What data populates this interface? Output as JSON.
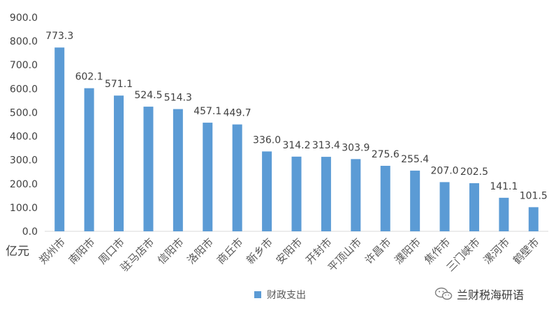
{
  "chart_data": {
    "type": "bar",
    "title": "",
    "xlabel": "",
    "ylabel": "亿元",
    "ylim": [
      0,
      900
    ],
    "yticks": [
      "0.0",
      "100.0",
      "200.0",
      "300.0",
      "400.0",
      "500.0",
      "600.0",
      "700.0",
      "800.0",
      "900.0"
    ],
    "grid": false,
    "legend_position": "bottom",
    "bar_color": "#5b9bd5",
    "categories": [
      "郑州市",
      "南阳市",
      "周口市",
      "驻马店市",
      "信阳市",
      "洛阳市",
      "商丘市",
      "新乡市",
      "安阳市",
      "开封市",
      "平顶山市",
      "许昌市",
      "濮阳市",
      "焦作市",
      "三门峡市",
      "漯河市",
      "鹤壁市"
    ],
    "series": [
      {
        "name": "财政支出",
        "values": [
          773.3,
          602.1,
          571.1,
          524.5,
          514.3,
          457.1,
          449.7,
          336.0,
          314.2,
          313.4,
          303.9,
          275.6,
          255.4,
          207.0,
          202.5,
          141.1,
          101.5
        ],
        "labels": [
          "773.3",
          "602.1",
          "571.1",
          "524.5",
          "514.3",
          "457.1",
          "449.7",
          "336.0",
          "314.2",
          "313.4",
          "303.9",
          "275.6",
          "255.4",
          "207.0",
          "202.5",
          "141.1",
          "101.5"
        ]
      }
    ]
  },
  "watermark": {
    "icon": "wechat-icon",
    "text": "兰财税海研语"
  }
}
